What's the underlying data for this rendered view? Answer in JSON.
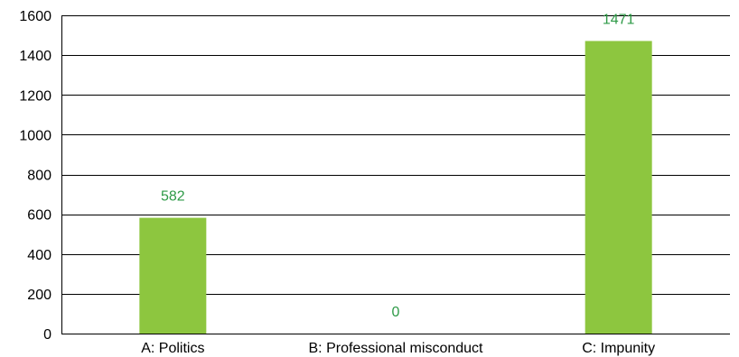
{
  "chart_data": {
    "type": "bar",
    "categories": [
      "A: Politics",
      "B: Professional misconduct",
      "C: Impunity"
    ],
    "values": [
      582,
      0,
      1471
    ],
    "data_labels": [
      "582",
      "0",
      "1471"
    ],
    "title": "",
    "xlabel": "",
    "ylabel": "",
    "ylim": [
      0,
      1600
    ],
    "yticks": [
      0,
      200,
      400,
      600,
      800,
      1000,
      1200,
      1400,
      1600
    ],
    "ytick_labels": [
      "0",
      "200",
      "400",
      "600",
      "800",
      "1000",
      "1200",
      "1400",
      "1600"
    ],
    "grid": true,
    "legend": "none",
    "colors": {
      "bar": "#8dc63f",
      "data_label": "#2e9a47",
      "grid": "#000000",
      "text": "#000000"
    }
  }
}
